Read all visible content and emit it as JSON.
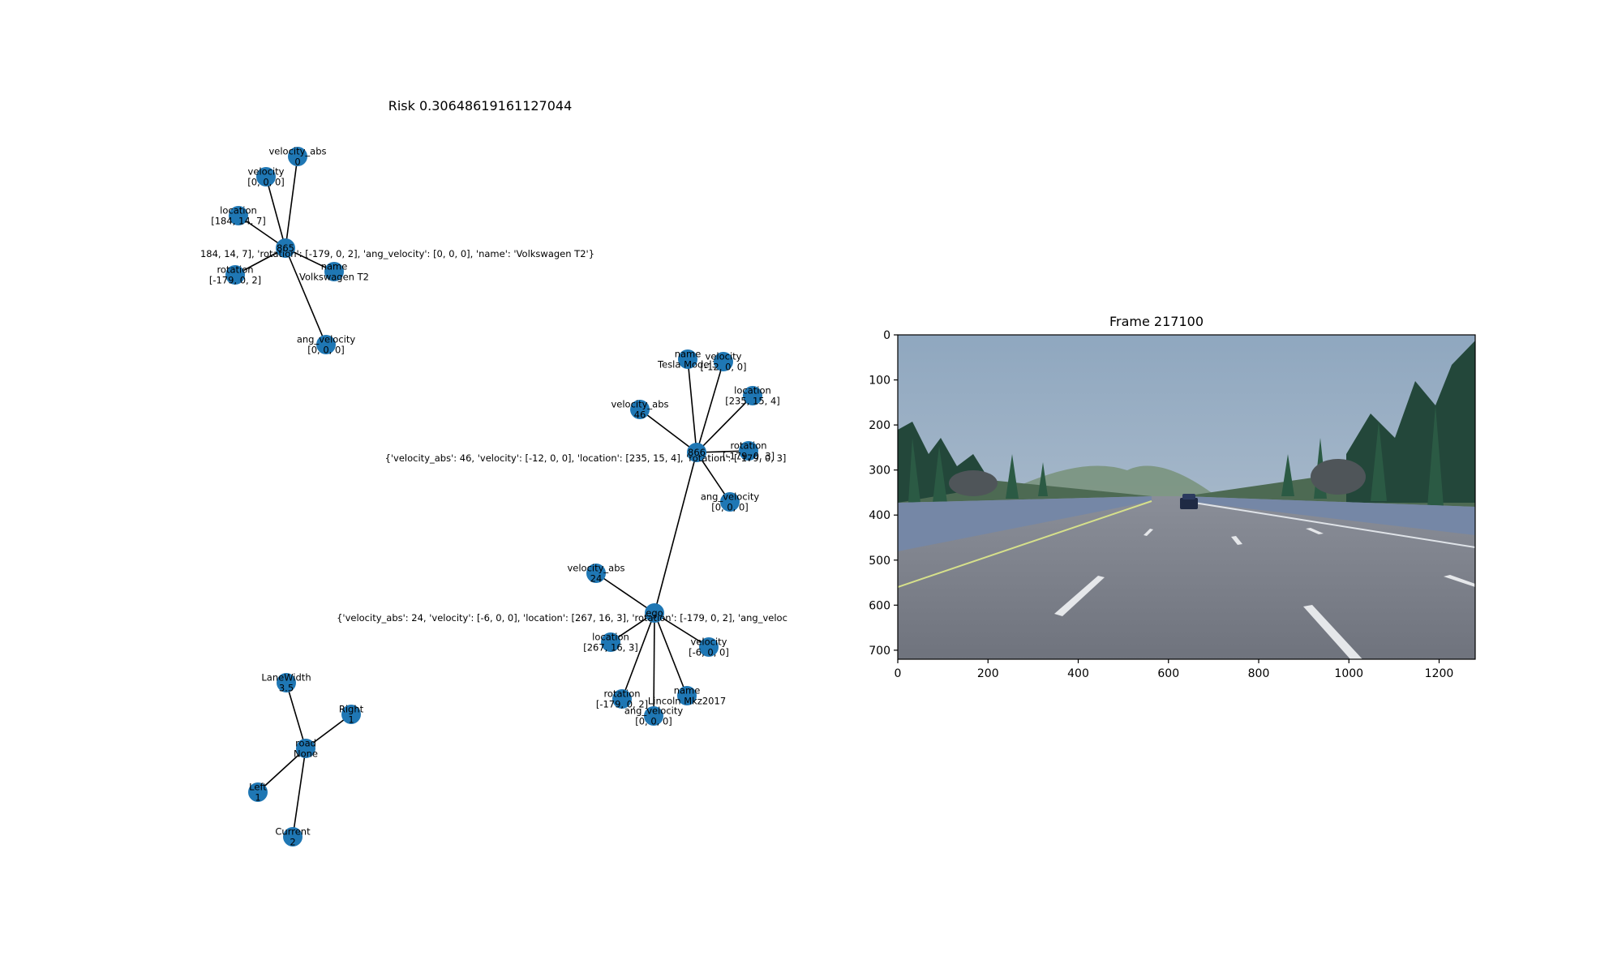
{
  "risk_title": "Risk 0.30648619161127044",
  "frame_title": "Frame 217100",
  "graph": {
    "nodes": [
      {
        "id": "v865",
        "label": "865"
      },
      {
        "id": "v865_vabs",
        "label": "velocity_abs\n0"
      },
      {
        "id": "v865_vel",
        "label": "velocity\n[0, 0, 0]"
      },
      {
        "id": "v865_loc",
        "label": "location\n[184, 14, 7]"
      },
      {
        "id": "v865_rot",
        "label": "rotation\n[-179, 0, 2]"
      },
      {
        "id": "v865_name",
        "label": "name\nVolkswagen T2"
      },
      {
        "id": "v865_ang",
        "label": "ang_velocity\n[0, 0, 0]"
      },
      {
        "id": "v865_attr",
        "label": "184, 14, 7], 'rotation': [-179, 0, 2], 'ang_velocity': [0, 0, 0], 'name': 'Volkswagen T2'}"
      },
      {
        "id": "v866",
        "label": "866"
      },
      {
        "id": "v866_name",
        "label": "name\nTesla Model3"
      },
      {
        "id": "v866_vel",
        "label": "velocity\n[-12, 0, 0]"
      },
      {
        "id": "v866_loc",
        "label": "location\n[235, 15, 4]"
      },
      {
        "id": "v866_vabs",
        "label": "velocity_abs\n46"
      },
      {
        "id": "v866_rot",
        "label": "rotation\n[-179, 0, 3]"
      },
      {
        "id": "v866_ang",
        "label": "ang_velocity\n[0, 0, 0]"
      },
      {
        "id": "v866_attr",
        "label": "{'velocity_abs': 46, 'velocity': [-12, 0, 0], 'location': [235, 15, 4], 'rotation': [-179, 0, 3]"
      },
      {
        "id": "ego",
        "label": "ego"
      },
      {
        "id": "ego_vabs",
        "label": "velocity_abs\n24"
      },
      {
        "id": "ego_loc",
        "label": "location\n[267, 16, 3]"
      },
      {
        "id": "ego_vel",
        "label": "velocity\n[-6, 0, 0]"
      },
      {
        "id": "ego_rot",
        "label": "rotation\n[-179, 0, 2]"
      },
      {
        "id": "ego_name",
        "label": "name\nLincoln Mkz2017"
      },
      {
        "id": "ego_ang",
        "label": "ang_velocity\n[0, 0, 0]"
      },
      {
        "id": "ego_attr",
        "label": "{'velocity_abs': 24, 'velocity': [-6, 0, 0], 'location': [267, 16, 3], 'rotation': [-179, 0, 2], 'ang_veloc"
      },
      {
        "id": "road",
        "label": "road\nNone"
      },
      {
        "id": "lanewidth",
        "label": "LaneWidth\n3.5"
      },
      {
        "id": "right",
        "label": "Right\n1"
      },
      {
        "id": "left",
        "label": "Left\n1"
      },
      {
        "id": "current",
        "label": "Current\n2"
      }
    ],
    "edges": [
      [
        "v865",
        "v865_vabs"
      ],
      [
        "v865",
        "v865_vel"
      ],
      [
        "v865",
        "v865_loc"
      ],
      [
        "v865",
        "v865_rot"
      ],
      [
        "v865",
        "v865_name"
      ],
      [
        "v865",
        "v865_ang"
      ],
      [
        "v866",
        "v866_name"
      ],
      [
        "v866",
        "v866_vel"
      ],
      [
        "v866",
        "v866_loc"
      ],
      [
        "v866",
        "v866_vabs"
      ],
      [
        "v866",
        "v866_rot"
      ],
      [
        "v866",
        "v866_ang"
      ],
      [
        "v866",
        "ego"
      ],
      [
        "ego",
        "ego_vabs"
      ],
      [
        "ego",
        "ego_loc"
      ],
      [
        "ego",
        "ego_vel"
      ],
      [
        "ego",
        "ego_rot"
      ],
      [
        "ego",
        "ego_name"
      ],
      [
        "ego",
        "ego_ang"
      ],
      [
        "road",
        "lanewidth"
      ],
      [
        "road",
        "right"
      ],
      [
        "road",
        "left"
      ],
      [
        "road",
        "current"
      ]
    ]
  },
  "frame_axes": {
    "x_ticks": [
      "0",
      "200",
      "400",
      "600",
      "800",
      "1000",
      "1200"
    ],
    "y_ticks": [
      "0",
      "100",
      "200",
      "300",
      "400",
      "500",
      "600",
      "700"
    ],
    "xlim": [
      0,
      1280
    ],
    "ylim": [
      720,
      0
    ]
  },
  "colors": {
    "node": "#1f77b4",
    "sky": "#9fb4c9",
    "road": "#7b7f8a",
    "trees": "#2f5b43",
    "barrier": "#6f7f9a"
  }
}
